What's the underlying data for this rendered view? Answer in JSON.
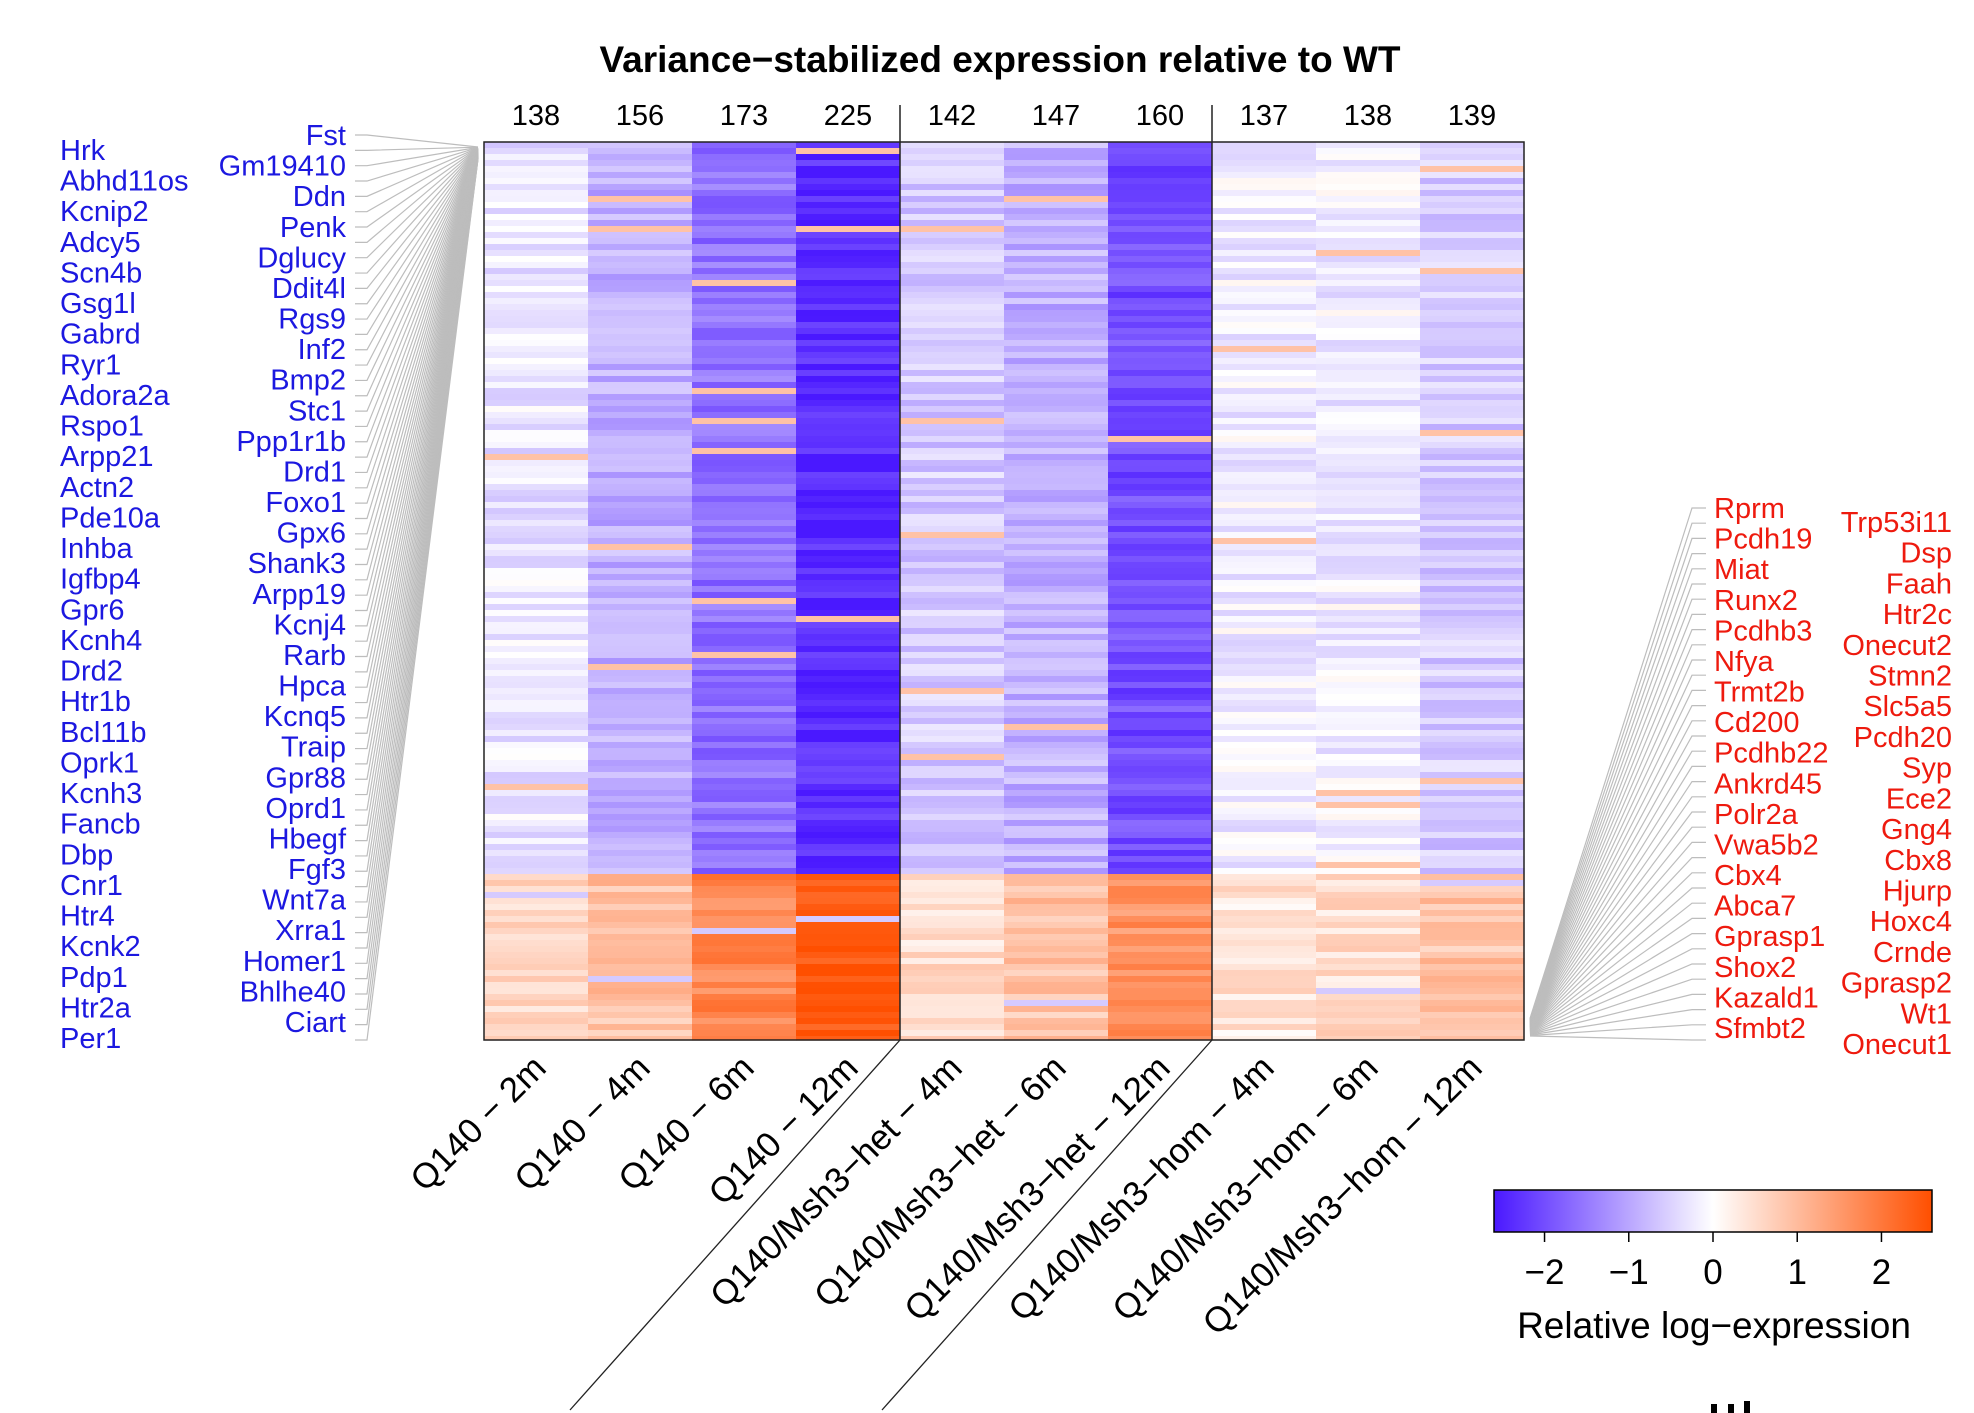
{
  "chart_data": {
    "type": "heatmap",
    "title": "Variance−stabilized expression relative to WT",
    "columns": [
      {
        "label": "Q140 − 2m",
        "count": "138",
        "group": "Q140"
      },
      {
        "label": "Q140 − 4m",
        "count": "156",
        "group": "Q140"
      },
      {
        "label": "Q140 − 6m",
        "count": "173",
        "group": "Q140"
      },
      {
        "label": "Q140 − 12m",
        "count": "225",
        "group": "Q140"
      },
      {
        "label": "Q140/Msh3−het − 4m",
        "count": "142",
        "group": "Q140/Msh3-het"
      },
      {
        "label": "Q140/Msh3−het − 6m",
        "count": "147",
        "group": "Q140/Msh3-het"
      },
      {
        "label": "Q140/Msh3−het − 12m",
        "count": "160",
        "group": "Q140/Msh3-het"
      },
      {
        "label": "Q140/Msh3−hom − 4m",
        "count": "137",
        "group": "Q140/Msh3-hom"
      },
      {
        "label": "Q140/Msh3−hom − 6m",
        "count": "138",
        "group": "Q140/Msh3-hom"
      },
      {
        "label": "Q140/Msh3−hom − 12m",
        "count": "139",
        "group": "Q140/Msh3-hom"
      }
    ],
    "block_mean_values": {
      "downregulated_genes": [
        -0.3,
        -0.9,
        -1.6,
        -2.4,
        -0.6,
        -0.9,
        -2.0,
        -0.2,
        -0.2,
        -0.6
      ],
      "upregulated_genes": [
        0.5,
        0.9,
        1.8,
        2.5,
        0.5,
        0.9,
        1.6,
        0.4,
        0.5,
        0.9
      ]
    },
    "downregulated_fraction_of_rows": 0.81,
    "downregulated_genes_outer": [
      "Hrk",
      "Abhd11os",
      "Kcnip2",
      "Adcy5",
      "Scn4b",
      "Gsg1l",
      "Gabrd",
      "Ryr1",
      "Adora2a",
      "Rspo1",
      "Arpp21",
      "Actn2",
      "Pde10a",
      "Inhba",
      "Igfbp4",
      "Gpr6",
      "Kcnh4",
      "Drd2",
      "Htr1b",
      "Bcl11b",
      "Oprk1",
      "Kcnh3",
      "Fancb",
      "Dbp",
      "Cnr1",
      "Htr4",
      "Kcnk2",
      "Pdp1",
      "Htr2a",
      "Per1"
    ],
    "downregulated_genes_inner": [
      "Fst",
      "Gm19410",
      "Ddn",
      "Penk",
      "Dglucy",
      "Ddit4l",
      "Rgs9",
      "Inf2",
      "Bmp2",
      "Stc1",
      "Ppp1r1b",
      "Drd1",
      "Foxo1",
      "Gpx6",
      "Shank3",
      "Arpp19",
      "Kcnj4",
      "Rarb",
      "Hpca",
      "Kcnq5",
      "Traip",
      "Gpr88",
      "Oprd1",
      "Hbegf",
      "Fgf3",
      "Wnt7a",
      "Xrra1",
      "Homer1",
      "Bhlhe40",
      "Ciart"
    ],
    "upregulated_genes_inner": [
      "Rprm",
      "Pcdh19",
      "Miat",
      "Runx2",
      "Pcdhb3",
      "Nfya",
      "Trmt2b",
      "Cd200",
      "Pcdhb22",
      "Ankrd45",
      "Polr2a",
      "Vwa5b2",
      "Cbx4",
      "Abca7",
      "Gprasp1",
      "Shox2",
      "Kazald1",
      "Sfmbt2"
    ],
    "upregulated_genes_outer": [
      "Trp53i11",
      "Dsp",
      "Faah",
      "Htr2c",
      "Onecut2",
      "Stmn2",
      "Slc5a5",
      "Pcdh20",
      "Syp",
      "Ece2",
      "Gng4",
      "Cbx8",
      "Hjurp",
      "Hoxc4",
      "Crnde",
      "Gprasp2",
      "Wt1",
      "Onecut1"
    ],
    "colorbar": {
      "label": "Relative log−expression",
      "ticks": [
        "−2",
        "−1",
        "0",
        "1",
        "2"
      ],
      "tick_values": [
        -2,
        -1,
        0,
        1,
        2
      ],
      "range": [
        -2.6,
        2.6
      ],
      "low_color": "#4a18ff",
      "mid_color": "#ffffff",
      "high_color": "#ff4f00"
    }
  }
}
